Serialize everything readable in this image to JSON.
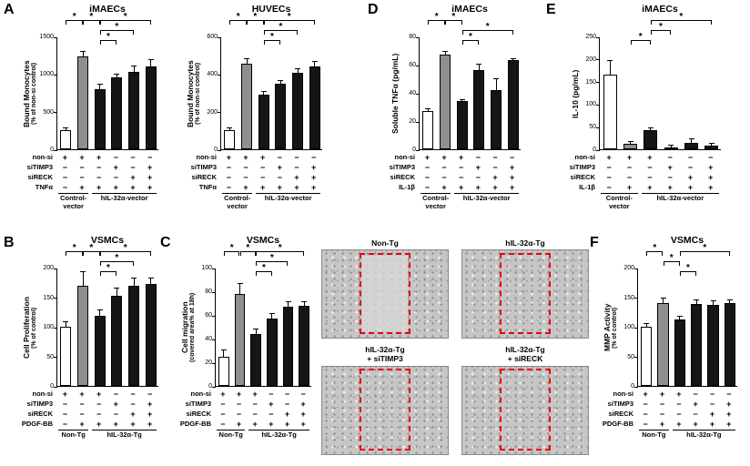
{
  "labels": {
    "panelA": "A",
    "panelB": "B",
    "panelC": "C",
    "panelD": "D",
    "panelE": "E",
    "panelF": "F"
  },
  "colors": {
    "bar_white": "#ffffff",
    "bar_gray": "#8f8f8f",
    "bar_black": "#151515",
    "highlight": "#e8000b"
  },
  "micrographs": {
    "items": [
      {
        "label": "Non-Tg",
        "scratch_clear": true
      },
      {
        "label": "hIL-32α-Tg",
        "scratch_clear": false
      },
      {
        "label": "hIL-32α-Tg\n+ siTIMP3",
        "scratch_clear": false
      },
      {
        "label": "hIL-32α-Tg\n+ siRECK",
        "scratch_clear": false
      }
    ]
  },
  "chart_data": [
    {
      "id": "A-imaecs",
      "panel": "A",
      "type": "bar",
      "title": "iMAECs",
      "ylabel": "Bound Monocytes",
      "ylabel_sub": "(% of non-si control)",
      "ylim": [
        0,
        1500
      ],
      "yticks": [
        0,
        500,
        1000,
        1500
      ],
      "values": [
        250,
        1230,
        800,
        950,
        1030,
        1100
      ],
      "errors": [
        30,
        60,
        60,
        45,
        70,
        80
      ],
      "bar_styles": [
        "white",
        "gray",
        "black",
        "black",
        "black",
        "black"
      ],
      "sig_brackets": [
        {
          "from": 0,
          "to": 1,
          "level": 2,
          "label": "*"
        },
        {
          "from": 1,
          "to": 2,
          "level": 2,
          "label": "*"
        },
        {
          "from": 2,
          "to": 5,
          "level": 2,
          "label": "*"
        },
        {
          "from": 2,
          "to": 3,
          "level": 0,
          "label": "*"
        },
        {
          "from": 2,
          "to": 4,
          "level": 1,
          "label": "*"
        }
      ],
      "matrix_rows": [
        {
          "label": "non-si",
          "values": [
            "+",
            "+",
            "+",
            "−",
            "−",
            "−"
          ]
        },
        {
          "label": "siTIMP3",
          "values": [
            "−",
            "−",
            "−",
            "+",
            "−",
            "+"
          ]
        },
        {
          "label": "siRECK",
          "values": [
            "−",
            "−",
            "−",
            "−",
            "+",
            "+"
          ]
        },
        {
          "label": "TNFα",
          "values": [
            "−",
            "+",
            "+",
            "+",
            "+",
            "+"
          ]
        }
      ],
      "groups": [
        {
          "label": "Control-\nvector",
          "from": 0,
          "to": 1
        },
        {
          "label": "hIL-32α-vector",
          "from": 2,
          "to": 5
        }
      ]
    },
    {
      "id": "A-huvecs",
      "panel": "A",
      "type": "bar",
      "title": "HUVECs",
      "ylabel": "Bound Monocytes",
      "ylabel_sub": "(% of non-si control)",
      "ylim": [
        0,
        600
      ],
      "yticks": [
        0,
        200,
        400,
        600
      ],
      "values": [
        100,
        455,
        290,
        350,
        405,
        440
      ],
      "errors": [
        10,
        25,
        15,
        15,
        20,
        25
      ],
      "bar_styles": [
        "white",
        "gray",
        "black",
        "black",
        "black",
        "black"
      ],
      "sig_brackets": [
        {
          "from": 0,
          "to": 1,
          "level": 2,
          "label": "*"
        },
        {
          "from": 1,
          "to": 2,
          "level": 2,
          "label": "*"
        },
        {
          "from": 2,
          "to": 5,
          "level": 2,
          "label": "*"
        },
        {
          "from": 2,
          "to": 3,
          "level": 0,
          "label": "*"
        },
        {
          "from": 2,
          "to": 4,
          "level": 1,
          "label": "*"
        }
      ],
      "matrix_rows": [
        {
          "label": "non-si",
          "values": [
            "+",
            "+",
            "+",
            "−",
            "−",
            "−"
          ]
        },
        {
          "label": "siTIMP3",
          "values": [
            "−",
            "−",
            "−",
            "+",
            "−",
            "+"
          ]
        },
        {
          "label": "siRECK",
          "values": [
            "−",
            "−",
            "−",
            "−",
            "+",
            "+"
          ]
        },
        {
          "label": "TNFα",
          "values": [
            "−",
            "+",
            "+",
            "+",
            "+",
            "+"
          ]
        }
      ],
      "groups": [
        {
          "label": "Control-\nvector",
          "from": 0,
          "to": 1
        },
        {
          "label": "hIL-32α-vector",
          "from": 2,
          "to": 5
        }
      ]
    },
    {
      "id": "B-vsmcs",
      "panel": "B",
      "type": "bar",
      "title": "VSMCs",
      "ylabel": "Cell Proliferation",
      "ylabel_sub": "(% of control)",
      "ylim": [
        0,
        200
      ],
      "yticks": [
        0,
        50,
        100,
        150,
        200
      ],
      "values": [
        100,
        170,
        118,
        152,
        170,
        172
      ],
      "errors": [
        8,
        22,
        10,
        12,
        12,
        10
      ],
      "bar_styles": [
        "white",
        "gray",
        "black",
        "black",
        "black",
        "black"
      ],
      "sig_brackets": [
        {
          "from": 0,
          "to": 1,
          "level": 2,
          "label": "*"
        },
        {
          "from": 1,
          "to": 2,
          "level": 2,
          "label": "*"
        },
        {
          "from": 2,
          "to": 5,
          "level": 2,
          "label": "*"
        },
        {
          "from": 2,
          "to": 3,
          "level": 0,
          "label": "*"
        },
        {
          "from": 2,
          "to": 4,
          "level": 1,
          "label": "*"
        }
      ],
      "matrix_rows": [
        {
          "label": "non-si",
          "values": [
            "+",
            "+",
            "+",
            "−",
            "−",
            "−"
          ]
        },
        {
          "label": "siTIMP3",
          "values": [
            "−",
            "−",
            "−",
            "+",
            "−",
            "+"
          ]
        },
        {
          "label": "siRECK",
          "values": [
            "−",
            "−",
            "−",
            "−",
            "+",
            "+"
          ]
        },
        {
          "label": "PDGF-BB",
          "values": [
            "−",
            "+",
            "+",
            "+",
            "+",
            "+"
          ]
        }
      ],
      "groups": [
        {
          "label": "Non-Tg",
          "from": 0,
          "to": 1
        },
        {
          "label": "hIL-32α-Tg",
          "from": 2,
          "to": 5
        }
      ]
    },
    {
      "id": "C-vsmcs",
      "panel": "C",
      "type": "bar",
      "title": "VSMCs",
      "ylabel": "Cell migration",
      "ylabel_sub": "(covered area% at 18h)",
      "ylim": [
        0,
        100
      ],
      "yticks": [
        0,
        20,
        40,
        60,
        80,
        100
      ],
      "values": [
        25,
        78,
        44,
        57,
        67,
        68
      ],
      "errors": [
        5,
        8,
        4,
        4,
        4,
        3
      ],
      "bar_styles": [
        "white",
        "gray",
        "black",
        "black",
        "black",
        "black"
      ],
      "sig_brackets": [
        {
          "from": 0,
          "to": 1,
          "level": 2,
          "label": "*"
        },
        {
          "from": 1,
          "to": 2,
          "level": 2,
          "label": "*"
        },
        {
          "from": 2,
          "to": 5,
          "level": 2,
          "label": "*"
        },
        {
          "from": 2,
          "to": 3,
          "level": 0,
          "label": "*"
        },
        {
          "from": 2,
          "to": 4,
          "level": 1,
          "label": "*"
        }
      ],
      "matrix_rows": [
        {
          "label": "non-si",
          "values": [
            "+",
            "+",
            "+",
            "−",
            "−",
            "−"
          ]
        },
        {
          "label": "siTIMP3",
          "values": [
            "−",
            "−",
            "−",
            "+",
            "−",
            "+"
          ]
        },
        {
          "label": "siRECK",
          "values": [
            "−",
            "−",
            "−",
            "−",
            "+",
            "+"
          ]
        },
        {
          "label": "PDGF-BB",
          "values": [
            "−",
            "+",
            "+",
            "+",
            "+",
            "+"
          ]
        }
      ],
      "groups": [
        {
          "label": "Non-Tg",
          "from": 0,
          "to": 1
        },
        {
          "label": "hIL-32α-Tg",
          "from": 2,
          "to": 5
        }
      ]
    },
    {
      "id": "D-imaecs",
      "panel": "D",
      "type": "bar",
      "title": "iMAECs",
      "ylabel": "Soluble  TNFα (pg/mL)",
      "ylabel_sub": "",
      "ylim": [
        0,
        80
      ],
      "yticks": [
        0,
        20,
        40,
        60,
        80
      ],
      "values": [
        27,
        67,
        34,
        56,
        42,
        63
      ],
      "errors": [
        1.5,
        2,
        1,
        4,
        8,
        1
      ],
      "bar_styles": [
        "white",
        "gray",
        "black",
        "black",
        "black",
        "black"
      ],
      "sig_brackets": [
        {
          "from": 0,
          "to": 1,
          "level": 2,
          "label": "*"
        },
        {
          "from": 1,
          "to": 2,
          "level": 2,
          "label": "*"
        },
        {
          "from": 2,
          "to": 3,
          "level": 0,
          "label": "*"
        },
        {
          "from": 2,
          "to": 5,
          "level": 1,
          "label": "*"
        }
      ],
      "matrix_rows": [
        {
          "label": "non-si",
          "values": [
            "+",
            "+",
            "+",
            "−",
            "−",
            "−"
          ]
        },
        {
          "label": "siTIMP3",
          "values": [
            "−",
            "−",
            "−",
            "+",
            "−",
            "+"
          ]
        },
        {
          "label": "siRECK",
          "values": [
            "−",
            "−",
            "−",
            "−",
            "+",
            "+"
          ]
        },
        {
          "label": "IL-1β",
          "values": [
            "−",
            "+",
            "+",
            "+",
            "+",
            "+"
          ]
        }
      ],
      "groups": [
        {
          "label": "Control-\nvector",
          "from": 0,
          "to": 1
        },
        {
          "label": "hIL-32α-vector",
          "from": 2,
          "to": 5
        }
      ]
    },
    {
      "id": "E-imaecs",
      "panel": "E",
      "type": "bar",
      "title": "iMAECs",
      "ylabel": "IL-10 (pg/mL)",
      "ylabel_sub": "",
      "ylim": [
        0,
        250
      ],
      "yticks": [
        0,
        50,
        100,
        150,
        200,
        250
      ],
      "values": [
        165,
        13,
        42,
        5,
        15,
        8
      ],
      "errors": [
        30,
        4,
        5,
        3,
        8,
        4
      ],
      "bar_styles": [
        "white",
        "gray",
        "black",
        "black",
        "black",
        "black"
      ],
      "sig_brackets": [
        {
          "from": 1,
          "to": 2,
          "level": 0,
          "label": "*"
        },
        {
          "from": 2,
          "to": 3,
          "level": 1,
          "label": "*"
        },
        {
          "from": 2,
          "to": 5,
          "level": 2,
          "label": "*"
        }
      ],
      "matrix_rows": [
        {
          "label": "non-si",
          "values": [
            "+",
            "+",
            "+",
            "−",
            "−",
            "−"
          ]
        },
        {
          "label": "siTIMP3",
          "values": [
            "−",
            "−",
            "−",
            "+",
            "−",
            "+"
          ]
        },
        {
          "label": "siRECK",
          "values": [
            "−",
            "−",
            "−",
            "−",
            "+",
            "+"
          ]
        },
        {
          "label": "IL-1β",
          "values": [
            "−",
            "+",
            "+",
            "+",
            "+",
            "+"
          ]
        }
      ],
      "groups": [
        {
          "label": "Control-\nvector",
          "from": 0,
          "to": 1
        },
        {
          "label": "hIL-32α-vector",
          "from": 2,
          "to": 5
        }
      ]
    },
    {
      "id": "F-vsmcs",
      "panel": "F",
      "type": "bar",
      "title": "VSMCs",
      "ylabel": "MMP Activity",
      "ylabel_sub": "(% of control)",
      "ylim": [
        0,
        200
      ],
      "yticks": [
        0,
        50,
        100,
        150,
        200
      ],
      "values": [
        100,
        140,
        112,
        138,
        137,
        140
      ],
      "errors": [
        4,
        8,
        5,
        6,
        6,
        5
      ],
      "bar_styles": [
        "white",
        "gray",
        "black",
        "black",
        "black",
        "black"
      ],
      "sig_brackets": [
        {
          "from": 0,
          "to": 1,
          "level": 2,
          "label": "*"
        },
        {
          "from": 1,
          "to": 2,
          "level": 1,
          "label": "*"
        },
        {
          "from": 2,
          "to": 3,
          "level": 0,
          "label": "*"
        },
        {
          "from": 2,
          "to": 5,
          "level": 2,
          "label": "*"
        }
      ],
      "matrix_rows": [
        {
          "label": "non-si",
          "values": [
            "+",
            "+",
            "+",
            "−",
            "−",
            "−"
          ]
        },
        {
          "label": "siTIMP3",
          "values": [
            "−",
            "−",
            "−",
            "+",
            "−",
            "+"
          ]
        },
        {
          "label": "siRECK",
          "values": [
            "−",
            "−",
            "−",
            "−",
            "+",
            "+"
          ]
        },
        {
          "label": "PDGF-BB",
          "values": [
            "−",
            "+",
            "+",
            "+",
            "+",
            "+"
          ]
        }
      ],
      "groups": [
        {
          "label": "Non-Tg",
          "from": 0,
          "to": 1
        },
        {
          "label": "hIL-32α-Tg",
          "from": 2,
          "to": 5
        }
      ]
    }
  ]
}
